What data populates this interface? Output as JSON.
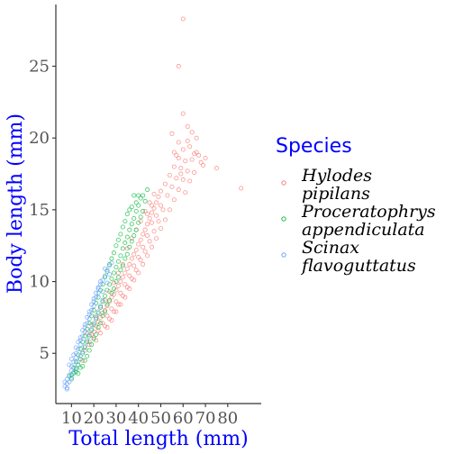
{
  "chart_data": {
    "type": "scatter",
    "title": "",
    "xlabel": "Total length (mm)",
    "ylabel": "Body length (mm)",
    "xlim": [
      3,
      95
    ],
    "ylim": [
      1.5,
      29.3
    ],
    "x_ticks": [
      10,
      20,
      30,
      40,
      50,
      60,
      70,
      80
    ],
    "y_ticks": [
      5,
      10,
      15,
      20,
      25
    ],
    "grid": false,
    "legend": {
      "title": "Species",
      "placement": "right",
      "entries": [
        {
          "lines": [
            "Hylodes",
            "pipilans"
          ],
          "color": "#f8766d"
        },
        {
          "lines": [
            "Proceratophrys",
            "appendiculata"
          ],
          "color": "#00ba38"
        },
        {
          "lines": [
            "Scinax",
            "flavoguttatus"
          ],
          "color": "#619cff"
        }
      ]
    },
    "series": [
      {
        "name": "Hylodes pipilans",
        "color": "#f8766d",
        "points": [
          [
            15,
            4.5
          ],
          [
            16,
            5.2
          ],
          [
            18,
            5.8
          ],
          [
            19,
            6.3
          ],
          [
            20,
            6.5
          ],
          [
            21,
            6.9
          ],
          [
            22,
            7.2
          ],
          [
            23,
            7.5
          ],
          [
            24,
            7.8
          ],
          [
            25,
            8.0
          ],
          [
            26,
            8.3
          ],
          [
            27,
            8.6
          ],
          [
            28,
            8.9
          ],
          [
            29,
            9.1
          ],
          [
            30,
            9.4
          ],
          [
            31,
            9.7
          ],
          [
            32,
            10.0
          ],
          [
            33,
            10.3
          ],
          [
            34,
            10.6
          ],
          [
            35,
            10.9
          ],
          [
            36,
            11.2
          ],
          [
            37,
            11.6
          ],
          [
            38,
            11.9
          ],
          [
            39,
            12.2
          ],
          [
            40,
            12.6
          ],
          [
            41,
            12.9
          ],
          [
            42,
            13.3
          ],
          [
            43,
            13.6
          ],
          [
            44,
            14.0
          ],
          [
            45,
            14.4
          ],
          [
            46,
            14.8
          ],
          [
            47,
            15.1
          ],
          [
            48,
            15.5
          ],
          [
            49,
            15.9
          ],
          [
            50,
            16.3
          ],
          [
            52,
            16.8
          ],
          [
            54,
            17.4
          ],
          [
            56,
            18.0
          ],
          [
            58,
            18.6
          ],
          [
            60,
            19.2
          ],
          [
            62,
            19.8
          ],
          [
            64,
            20.4
          ],
          [
            66,
            19.0
          ],
          [
            68,
            18.3
          ],
          [
            70,
            18.6
          ],
          [
            75,
            17.9
          ],
          [
            86,
            16.5
          ],
          [
            60,
            28.3
          ],
          [
            58,
            25.0
          ],
          [
            60,
            21.7
          ],
          [
            55,
            20.3
          ],
          [
            57,
            18.8
          ],
          [
            59,
            17.5
          ],
          [
            61,
            18.4
          ],
          [
            63,
            19.4
          ],
          [
            65,
            18.9
          ],
          [
            50,
            15.3
          ],
          [
            48,
            14.6
          ],
          [
            46,
            14.1
          ],
          [
            44,
            13.2
          ],
          [
            42,
            12.4
          ],
          [
            40,
            11.7
          ],
          [
            38,
            11.1
          ],
          [
            36,
            10.4
          ],
          [
            34,
            9.8
          ],
          [
            32,
            9.2
          ],
          [
            30,
            8.6
          ],
          [
            28,
            8.1
          ],
          [
            26,
            7.6
          ],
          [
            24,
            7.1
          ],
          [
            22,
            6.6
          ],
          [
            20,
            6.1
          ],
          [
            18,
            5.6
          ],
          [
            26,
            6.8
          ],
          [
            28,
            7.3
          ],
          [
            30,
            7.9
          ],
          [
            32,
            8.4
          ],
          [
            34,
            8.9
          ],
          [
            36,
            9.5
          ],
          [
            38,
            10.1
          ],
          [
            40,
            10.6
          ],
          [
            42,
            11.2
          ],
          [
            44,
            11.8
          ],
          [
            46,
            12.4
          ],
          [
            48,
            13.0
          ],
          [
            50,
            13.7
          ],
          [
            52,
            14.3
          ],
          [
            54,
            15.0
          ],
          [
            56,
            15.7
          ],
          [
            58,
            16.4
          ],
          [
            60,
            17.1
          ],
          [
            62,
            17.7
          ],
          [
            64,
            18.5
          ],
          [
            35,
            12.3
          ],
          [
            37,
            13.0
          ],
          [
            39,
            13.6
          ],
          [
            41,
            14.2
          ],
          [
            43,
            14.9
          ],
          [
            45,
            15.5
          ],
          [
            47,
            16.1
          ],
          [
            33,
            11.2
          ],
          [
            31,
            10.6
          ],
          [
            29,
            9.9
          ],
          [
            27,
            9.3
          ],
          [
            25,
            8.7
          ],
          [
            23,
            8.2
          ],
          [
            21,
            7.6
          ],
          [
            19,
            7.0
          ],
          [
            17,
            6.4
          ],
          [
            53,
            16.0
          ],
          [
            55,
            16.6
          ],
          [
            57,
            17.2
          ],
          [
            59,
            17.9
          ],
          [
            61,
            16.2
          ],
          [
            63,
            17.0
          ],
          [
            65,
            17.6
          ],
          [
            67,
            18.8
          ],
          [
            69,
            18.1
          ],
          [
            51,
            15.0
          ],
          [
            49,
            14.2
          ],
          [
            47,
            13.5
          ],
          [
            45,
            12.8
          ],
          [
            43,
            12.1
          ],
          [
            41,
            11.5
          ],
          [
            39,
            10.8
          ],
          [
            37,
            10.2
          ],
          [
            35,
            9.6
          ],
          [
            33,
            9.0
          ],
          [
            31,
            8.4
          ],
          [
            29,
            7.9
          ],
          [
            27,
            7.4
          ],
          [
            25,
            6.9
          ],
          [
            23,
            6.4
          ],
          [
            21,
            5.9
          ],
          [
            58,
            19.7
          ],
          [
            62,
            20.8
          ],
          [
            56,
            19.0
          ],
          [
            66,
            20.0
          ],
          [
            44,
            14.7
          ],
          [
            46,
            15.3
          ]
        ]
      },
      {
        "name": "Proceratophrys appendiculata",
        "color": "#00ba38",
        "points": [
          [
            10,
            3.2
          ],
          [
            11,
            3.6
          ],
          [
            12,
            3.9
          ],
          [
            13,
            4.2
          ],
          [
            14,
            4.6
          ],
          [
            15,
            5.0
          ],
          [
            16,
            5.4
          ],
          [
            17,
            5.8
          ],
          [
            18,
            6.2
          ],
          [
            19,
            6.6
          ],
          [
            20,
            7.0
          ],
          [
            21,
            7.4
          ],
          [
            22,
            7.8
          ],
          [
            23,
            8.2
          ],
          [
            24,
            8.6
          ],
          [
            25,
            9.0
          ],
          [
            26,
            9.4
          ],
          [
            27,
            9.8
          ],
          [
            28,
            10.2
          ],
          [
            29,
            10.6
          ],
          [
            30,
            11.0
          ],
          [
            31,
            11.4
          ],
          [
            32,
            11.8
          ],
          [
            33,
            12.3
          ],
          [
            34,
            12.7
          ],
          [
            35,
            13.1
          ],
          [
            36,
            13.6
          ],
          [
            37,
            14.0
          ],
          [
            38,
            14.4
          ],
          [
            39,
            14.9
          ],
          [
            40,
            15.3
          ],
          [
            41,
            15.8
          ],
          [
            42,
            16.0
          ],
          [
            43,
            15.6
          ],
          [
            44,
            16.4
          ],
          [
            38,
            16.0
          ],
          [
            40,
            16.0
          ],
          [
            36,
            15.0
          ],
          [
            34,
            14.2
          ],
          [
            32,
            13.3
          ],
          [
            30,
            12.5
          ],
          [
            28,
            11.6
          ],
          [
            26,
            10.7
          ],
          [
            24,
            9.8
          ],
          [
            22,
            8.9
          ],
          [
            20,
            8.0
          ],
          [
            18,
            7.1
          ],
          [
            16,
            6.2
          ],
          [
            14,
            5.3
          ],
          [
            12,
            4.4
          ],
          [
            13,
            3.6
          ],
          [
            15,
            4.1
          ],
          [
            17,
            4.8
          ],
          [
            19,
            5.6
          ],
          [
            21,
            6.3
          ],
          [
            23,
            7.1
          ],
          [
            25,
            7.9
          ],
          [
            27,
            8.7
          ],
          [
            29,
            9.5
          ],
          [
            31,
            10.3
          ],
          [
            33,
            11.1
          ],
          [
            35,
            11.9
          ],
          [
            37,
            12.8
          ],
          [
            39,
            13.6
          ],
          [
            41,
            14.5
          ],
          [
            14,
            4.0
          ],
          [
            16,
            4.5
          ],
          [
            18,
            5.2
          ],
          [
            20,
            6.0
          ],
          [
            22,
            6.8
          ],
          [
            24,
            7.6
          ],
          [
            26,
            8.4
          ],
          [
            28,
            9.2
          ],
          [
            30,
            10.0
          ],
          [
            32,
            10.8
          ],
          [
            34,
            11.6
          ],
          [
            36,
            12.4
          ],
          [
            38,
            13.2
          ],
          [
            40,
            14.1
          ],
          [
            42,
            14.9
          ],
          [
            35,
            14.7
          ],
          [
            37,
            15.2
          ],
          [
            39,
            15.5
          ],
          [
            33,
            13.8
          ],
          [
            31,
            12.9
          ],
          [
            29,
            12.0
          ],
          [
            27,
            11.2
          ],
          [
            25,
            10.3
          ],
          [
            23,
            9.4
          ],
          [
            21,
            8.5
          ],
          [
            19,
            7.6
          ],
          [
            17,
            6.7
          ],
          [
            15,
            5.8
          ],
          [
            13,
            4.9
          ],
          [
            11,
            4.0
          ],
          [
            10,
            3.5
          ],
          [
            9,
            3.4
          ],
          [
            12,
            3.7
          ]
        ]
      },
      {
        "name": "Scinax flavoguttatus",
        "color": "#619cff",
        "points": [
          [
            7,
            2.7
          ],
          [
            8,
            2.9
          ],
          [
            8,
            3.2
          ],
          [
            9,
            3.5
          ],
          [
            10,
            3.8
          ],
          [
            10,
            4.1
          ],
          [
            11,
            4.4
          ],
          [
            12,
            4.7
          ],
          [
            12,
            5.0
          ],
          [
            13,
            5.3
          ],
          [
            14,
            5.6
          ],
          [
            14,
            5.9
          ],
          [
            15,
            6.2
          ],
          [
            16,
            6.5
          ],
          [
            16,
            6.8
          ],
          [
            17,
            7.1
          ],
          [
            18,
            7.4
          ],
          [
            18,
            7.7
          ],
          [
            19,
            8.0
          ],
          [
            20,
            8.3
          ],
          [
            20,
            8.6
          ],
          [
            21,
            8.9
          ],
          [
            22,
            9.2
          ],
          [
            22,
            9.5
          ],
          [
            23,
            9.8
          ],
          [
            24,
            10.1
          ],
          [
            25,
            10.4
          ],
          [
            26,
            10.8
          ],
          [
            27,
            11.1
          ],
          [
            8,
            2.6
          ],
          [
            9,
            3.0
          ],
          [
            10,
            3.3
          ],
          [
            11,
            3.7
          ],
          [
            12,
            4.0
          ],
          [
            13,
            4.4
          ],
          [
            14,
            4.8
          ],
          [
            15,
            5.1
          ],
          [
            16,
            5.5
          ],
          [
            17,
            5.9
          ],
          [
            18,
            6.3
          ],
          [
            19,
            6.7
          ],
          [
            20,
            7.1
          ],
          [
            21,
            7.5
          ],
          [
            22,
            7.9
          ],
          [
            23,
            8.3
          ],
          [
            24,
            8.7
          ],
          [
            13,
            5.8
          ],
          [
            15,
            6.6
          ],
          [
            17,
            7.5
          ],
          [
            19,
            8.4
          ],
          [
            21,
            9.2
          ],
          [
            23,
            10.0
          ],
          [
            25,
            10.9
          ],
          [
            11,
            4.9
          ],
          [
            9,
            4.2
          ],
          [
            12,
            5.4
          ],
          [
            14,
            6.1
          ],
          [
            16,
            7.0
          ],
          [
            18,
            7.9
          ],
          [
            20,
            8.8
          ],
          [
            22,
            9.6
          ],
          [
            24,
            9.3
          ],
          [
            26,
            9.9
          ],
          [
            10,
            4.6
          ],
          [
            27,
            10.5
          ],
          [
            28,
            11.3
          ],
          [
            7,
            3.0
          ],
          [
            8,
            2.5
          ]
        ]
      }
    ]
  }
}
